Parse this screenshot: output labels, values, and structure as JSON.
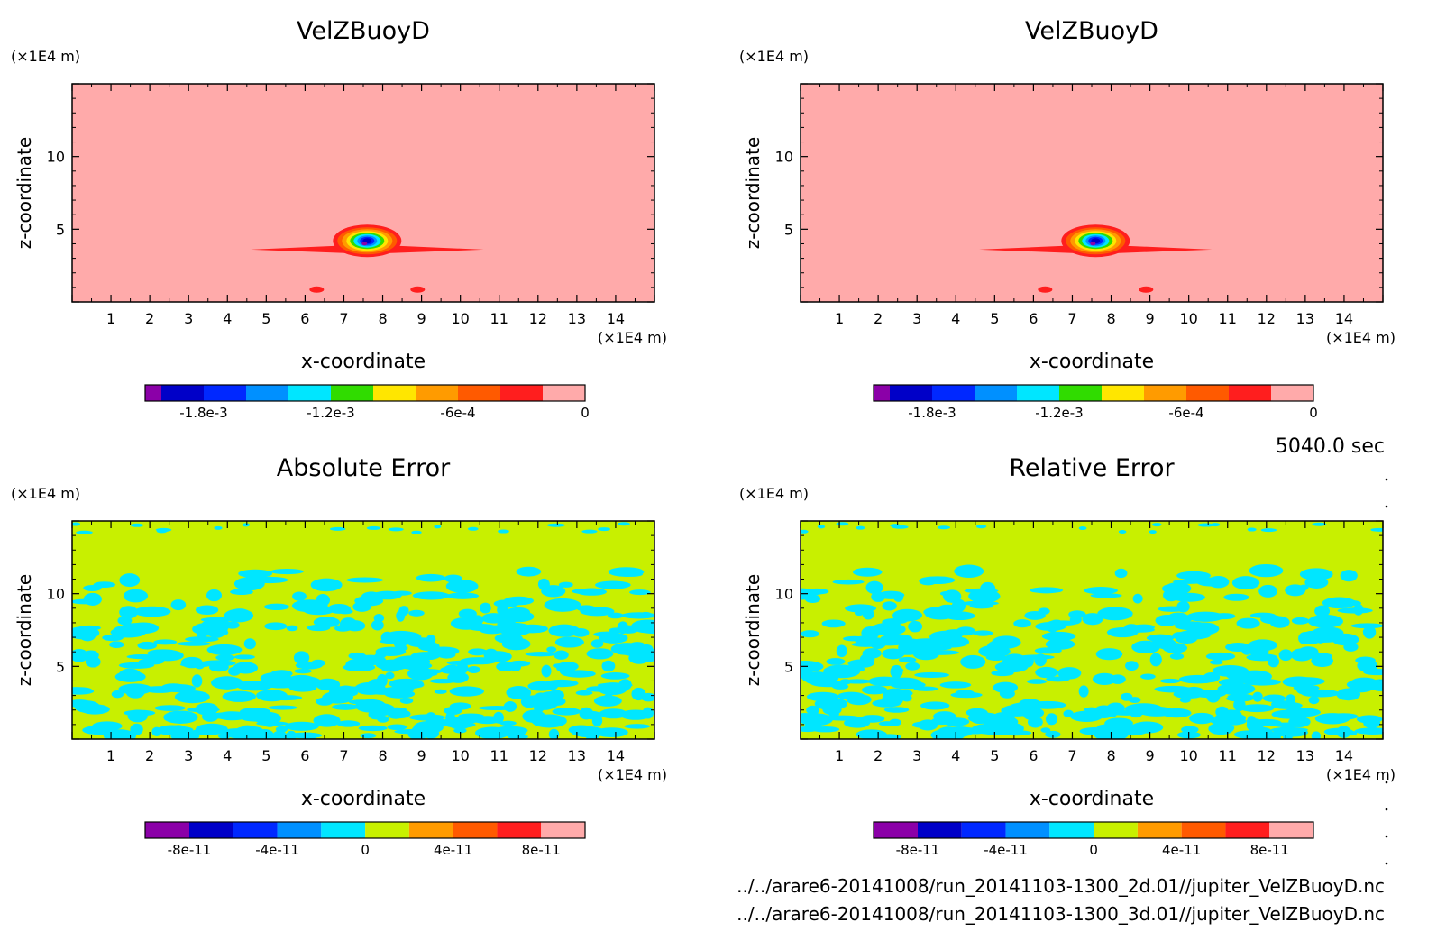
{
  "figure": {
    "time_label": "5040.0 sec",
    "files": [
      "../../arare6-20141008/run_20141103-1300_2d.01//jupiter_VelZBuoyD.nc",
      "../../arare6-20141008/run_20141103-1300_3d.01//jupiter_VelZBuoyD.nc"
    ]
  },
  "chart_data": [
    {
      "type": "heatmap",
      "title": "VelZBuoyD",
      "xlabel": "x-coordinate",
      "ylabel": "z-coordinate",
      "x_unit": "(×1E4 m)",
      "y_unit": "(×1E4 m)",
      "xlim": [
        0,
        15
      ],
      "ylim": [
        0,
        15
      ],
      "x_ticks": [
        "1",
        "2",
        "3",
        "4",
        "5",
        "6",
        "7",
        "8",
        "9",
        "10",
        "11",
        "12",
        "13",
        "14"
      ],
      "y_ticks": [
        "5",
        "10"
      ],
      "field": "thermal",
      "colorbar": {
        "colors": [
          "#8b00a8",
          "#0000c8",
          "#0028ff",
          "#0090ff",
          "#00e6ff",
          "#30dc00",
          "#ffe600",
          "#ff9b00",
          "#ff5a00",
          "#ff1e1e",
          "#ffaaaa"
        ],
        "labels": [
          "-1.8e-3",
          "-1.2e-3",
          "-6e-4",
          "0"
        ]
      }
    },
    {
      "type": "heatmap",
      "title": "VelZBuoyD",
      "xlabel": "x-coordinate",
      "ylabel": "z-coordinate",
      "x_unit": "(×1E4 m)",
      "y_unit": "(×1E4 m)",
      "xlim": [
        0,
        15
      ],
      "ylim": [
        0,
        15
      ],
      "x_ticks": [
        "1",
        "2",
        "3",
        "4",
        "5",
        "6",
        "7",
        "8",
        "9",
        "10",
        "11",
        "12",
        "13",
        "14"
      ],
      "y_ticks": [
        "5",
        "10"
      ],
      "field": "thermal",
      "colorbar": {
        "colors": [
          "#8b00a8",
          "#0000c8",
          "#0028ff",
          "#0090ff",
          "#00e6ff",
          "#30dc00",
          "#ffe600",
          "#ff9b00",
          "#ff5a00",
          "#ff1e1e",
          "#ffaaaa"
        ],
        "labels": [
          "-1.8e-3",
          "-1.2e-3",
          "-6e-4",
          "0"
        ]
      }
    },
    {
      "type": "heatmap",
      "title": "Absolute Error",
      "xlabel": "x-coordinate",
      "ylabel": "z-coordinate",
      "x_unit": "(×1E4 m)",
      "y_unit": "(×1E4 m)",
      "xlim": [
        0,
        15
      ],
      "ylim": [
        0,
        15
      ],
      "x_ticks": [
        "1",
        "2",
        "3",
        "4",
        "5",
        "6",
        "7",
        "8",
        "9",
        "10",
        "11",
        "12",
        "13",
        "14"
      ],
      "y_ticks": [
        "5",
        "10"
      ],
      "field": "noise",
      "colorbar": {
        "colors": [
          "#8b00a8",
          "#0000c8",
          "#0028ff",
          "#0090ff",
          "#00e6ff",
          "#c8f000",
          "#ff9b00",
          "#ff5a00",
          "#ff1e1e",
          "#ffaaaa"
        ],
        "labels": [
          "-8e-11",
          "-4e-11",
          "0",
          "4e-11",
          "8e-11"
        ]
      }
    },
    {
      "type": "heatmap",
      "title": "Relative Error",
      "xlabel": "x-coordinate",
      "ylabel": "z-coordinate",
      "x_unit": "(×1E4 m)",
      "y_unit": "(×1E4 m)",
      "xlim": [
        0,
        15
      ],
      "ylim": [
        0,
        15
      ],
      "x_ticks": [
        "1",
        "2",
        "3",
        "4",
        "5",
        "6",
        "7",
        "8",
        "9",
        "10",
        "11",
        "12",
        "13",
        "14"
      ],
      "y_ticks": [
        "5",
        "10"
      ],
      "field": "noise",
      "colorbar": {
        "colors": [
          "#8b00a8",
          "#0000c8",
          "#0028ff",
          "#0090ff",
          "#00e6ff",
          "#c8f000",
          "#ff9b00",
          "#ff5a00",
          "#ff1e1e",
          "#ffaaaa"
        ],
        "labels": [
          "-8e-11",
          "-4e-11",
          "0",
          "4e-11",
          "8e-11"
        ]
      }
    }
  ]
}
